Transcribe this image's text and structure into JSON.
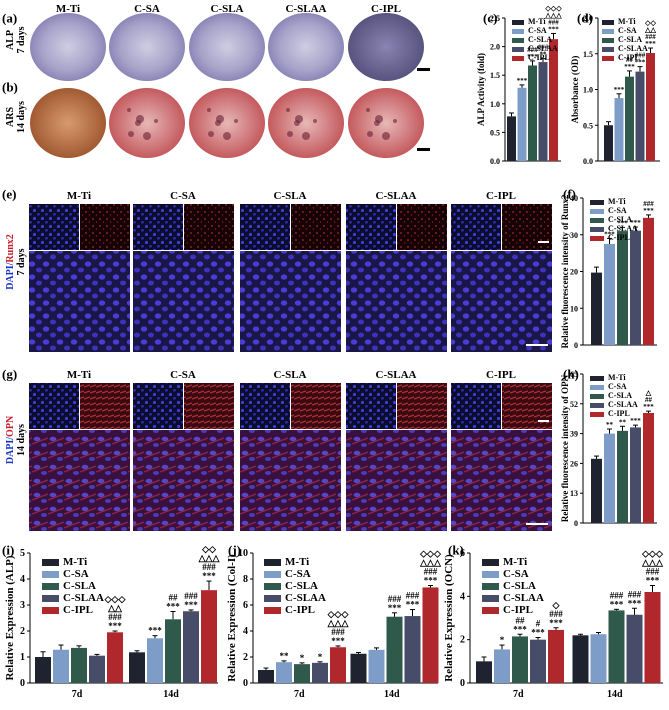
{
  "colors": [
    "#1f2330",
    "#7d9cc8",
    "#2f5a4b",
    "#474c68",
    "#b0272c"
  ],
  "groups": [
    "M-Ti",
    "C-SA",
    "C-SLA",
    "C-SLAA",
    "C-IPL"
  ],
  "rows": {
    "alp": "ALP\n7 days",
    "ars": "ARS\n14 days",
    "runx2_a": "DAPI/",
    "runx2_b": "Runx2",
    "runx2_days": "7 days",
    "opn_a": "DAPI/",
    "opn_b": "OPN",
    "opn_days": "14 days"
  },
  "panels": {
    "a": "(a)",
    "b": "(b)",
    "c": "(c)",
    "d": "(d)",
    "e": "(e)",
    "f": "(f)",
    "g": "(g)",
    "h": "(h)",
    "i": "(i)",
    "j": "(j)",
    "k": "(k)"
  },
  "chart_data": [
    {
      "id": "c",
      "type": "bar",
      "ylabel": "ALP Activity (fold)",
      "ylim": [
        0,
        2.5
      ],
      "yticks": [
        0.0,
        0.5,
        1.0,
        1.5,
        2.0,
        2.5
      ],
      "series": [
        {
          "name": "M-Ti",
          "values": [
            0.78
          ],
          "err": [
            0.06
          ]
        },
        {
          "name": "C-SA",
          "values": [
            1.28
          ],
          "err": [
            0.05
          ]
        },
        {
          "name": "C-SLA",
          "values": [
            1.67
          ],
          "err": [
            0.08
          ]
        },
        {
          "name": "C-SLAA",
          "values": [
            1.73
          ],
          "err": [
            0.06
          ]
        },
        {
          "name": "C-IPL",
          "values": [
            2.13
          ],
          "err": [
            0.1
          ]
        }
      ],
      "sig": [
        "",
        "***",
        "###\n***",
        "###\n**",
        "◇◇◇\n△△△\n###\n***"
      ]
    },
    {
      "id": "d",
      "type": "bar",
      "ylabel": "Absorbance (OD)",
      "ylim": [
        0,
        2.0
      ],
      "yticks": [
        0.0,
        0.5,
        1.0,
        1.5,
        2.0
      ],
      "series": [
        {
          "name": "M-Ti",
          "values": [
            0.5
          ],
          "err": [
            0.05
          ]
        },
        {
          "name": "C-SA",
          "values": [
            0.88
          ],
          "err": [
            0.06
          ]
        },
        {
          "name": "C-SLA",
          "values": [
            1.18
          ],
          "err": [
            0.08
          ]
        },
        {
          "name": "C-SLAA",
          "values": [
            1.25
          ],
          "err": [
            0.07
          ]
        },
        {
          "name": "C-IPL",
          "values": [
            1.51
          ],
          "err": [
            0.07
          ]
        }
      ],
      "sig": [
        "",
        "***",
        "##\n***",
        "###\n***",
        "◇◇\n△△\n###\n***"
      ]
    },
    {
      "id": "f",
      "type": "bar",
      "ylabel": "Relative fluorescence intensity of Runx2",
      "ylim": [
        0,
        40
      ],
      "yticks": [
        0,
        10,
        20,
        30,
        40
      ],
      "series": [
        {
          "name": "M-Ti",
          "values": [
            19.7
          ],
          "err": [
            1.5
          ]
        },
        {
          "name": "C-SA",
          "values": [
            27.5
          ],
          "err": [
            1.5
          ]
        },
        {
          "name": "C-SLA",
          "values": [
            31.0
          ],
          "err": [
            1.0
          ]
        },
        {
          "name": "C-SLAA",
          "values": [
            31.1
          ],
          "err": [
            1.0
          ]
        },
        {
          "name": "C-IPL",
          "values": [
            34.6
          ],
          "err": [
            0.8
          ]
        }
      ],
      "sig": [
        "",
        "***",
        "***",
        "***",
        "###\n***"
      ]
    },
    {
      "id": "h",
      "type": "bar",
      "ylabel": "Relative fluorescence intensity of OPN",
      "ylim": [
        0,
        65
      ],
      "yticks": [
        0,
        13,
        26,
        39,
        52,
        65
      ],
      "series": [
        {
          "name": "M-Ti",
          "values": [
            28.0
          ],
          "err": [
            1.2
          ]
        },
        {
          "name": "C-SA",
          "values": [
            39.0
          ],
          "err": [
            2.0
          ]
        },
        {
          "name": "C-SLA",
          "values": [
            40.2
          ],
          "err": [
            2.0
          ]
        },
        {
          "name": "C-SLAA",
          "values": [
            41.7
          ],
          "err": [
            1.0
          ]
        },
        {
          "name": "C-IPL",
          "values": [
            48.0
          ],
          "err": [
            0.8
          ]
        }
      ],
      "sig": [
        "",
        "**",
        "**",
        "***",
        "△\n##\n***"
      ]
    },
    {
      "id": "i",
      "type": "bar",
      "ylabel": "Relative Expression (ALP)",
      "categories": [
        "7d",
        "14d"
      ],
      "ylim": [
        0,
        5
      ],
      "yticks": [
        0,
        1,
        2,
        3,
        4,
        5
      ],
      "series": [
        {
          "name": "M-Ti",
          "values": [
            1.0,
            1.18
          ],
          "err": [
            0.2,
            0.06
          ]
        },
        {
          "name": "C-SA",
          "values": [
            1.28,
            1.72
          ],
          "err": [
            0.18,
            0.1
          ]
        },
        {
          "name": "C-SLA",
          "values": [
            1.35,
            2.45
          ],
          "err": [
            0.08,
            0.3
          ]
        },
        {
          "name": "C-SLAA",
          "values": [
            1.05,
            2.76
          ],
          "err": [
            0.05,
            0.05
          ]
        },
        {
          "name": "C-IPL",
          "values": [
            1.95,
            3.57
          ],
          "err": [
            0.05,
            0.35
          ]
        }
      ],
      "sig": [
        [
          "",
          "",
          "",
          "",
          "◇◇◇\n△△\n###\n***"
        ],
        [
          "",
          "***",
          "##\n***",
          "###\n***",
          "◇◇\n△△△\n###\n***"
        ]
      ]
    },
    {
      "id": "j",
      "type": "bar",
      "ylabel": "Relative Expression (Col-I)",
      "categories": [
        "7d",
        "14d"
      ],
      "ylim": [
        0,
        10
      ],
      "yticks": [
        0,
        2,
        4,
        6,
        8,
        10
      ],
      "series": [
        {
          "name": "M-Ti",
          "values": [
            1.0,
            2.25
          ],
          "err": [
            0.15,
            0.1
          ]
        },
        {
          "name": "C-SA",
          "values": [
            1.6,
            2.55
          ],
          "err": [
            0.1,
            0.15
          ]
        },
        {
          "name": "C-SLA",
          "values": [
            1.45,
            5.1
          ],
          "err": [
            0.1,
            0.3
          ]
        },
        {
          "name": "C-SLAA",
          "values": [
            1.55,
            5.15
          ],
          "err": [
            0.08,
            0.5
          ]
        },
        {
          "name": "C-IPL",
          "values": [
            2.75,
            7.35
          ],
          "err": [
            0.1,
            0.15
          ]
        }
      ],
      "sig": [
        [
          "",
          "**",
          "*",
          "*",
          "◇◇◇\n△△△\n###\n***"
        ],
        [
          "",
          "",
          "###\n***",
          "###\n***",
          "◇◇◇\n△△△\n###\n***"
        ]
      ]
    },
    {
      "id": "k",
      "type": "bar",
      "ylabel": "Relative Expression (OCN)",
      "categories": [
        "7d",
        "14d"
      ],
      "ylim": [
        0,
        6
      ],
      "yticks": [
        0,
        2,
        4,
        6
      ],
      "series": [
        {
          "name": "M-Ti",
          "values": [
            1.0,
            2.2
          ],
          "err": [
            0.2,
            0.05
          ]
        },
        {
          "name": "C-SA",
          "values": [
            1.55,
            2.25
          ],
          "err": [
            0.2,
            0.08
          ]
        },
        {
          "name": "C-SLA",
          "values": [
            2.15,
            3.35
          ],
          "err": [
            0.1,
            0.05
          ]
        },
        {
          "name": "C-SLAA",
          "values": [
            2.0,
            3.15
          ],
          "err": [
            0.1,
            0.3
          ]
        },
        {
          "name": "C-IPL",
          "values": [
            2.45,
            4.2
          ],
          "err": [
            0.1,
            0.3
          ]
        }
      ],
      "sig": [
        [
          "",
          "*",
          "##\n***",
          "#\n***",
          "◇\n###\n***"
        ],
        [
          "",
          "",
          "###\n***",
          "###\n***",
          "◇◇◇\n△△△\n###\n***"
        ]
      ]
    }
  ]
}
